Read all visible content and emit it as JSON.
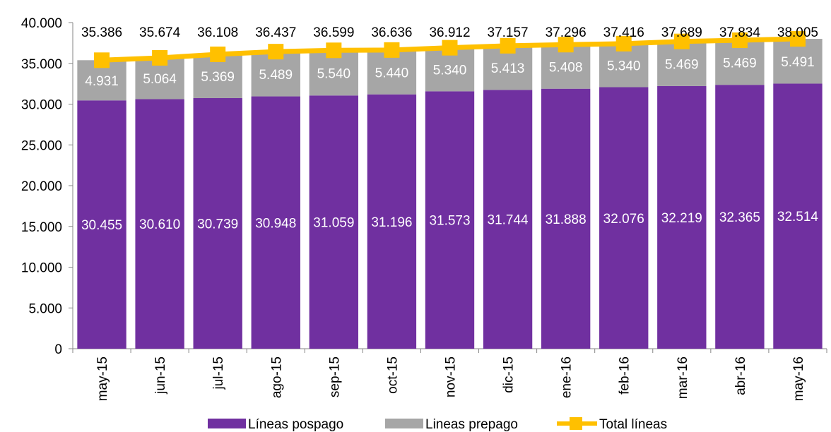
{
  "chart_data": {
    "type": "bar",
    "stacked": true,
    "categories": [
      "may-15",
      "jun-15",
      "jul-15",
      "ago-15",
      "sep-15",
      "oct-15",
      "nov-15",
      "dic-15",
      "ene-16",
      "feb-16",
      "mar-16",
      "abr-16",
      "may-16"
    ],
    "series": [
      {
        "name": "Líneas pospago",
        "kind": "bar",
        "color": "#7030a0",
        "values": [
          30455,
          30610,
          30739,
          30948,
          31059,
          31196,
          31573,
          31744,
          31888,
          32076,
          32219,
          32365,
          32514
        ],
        "labels": [
          "30.455",
          "30.610",
          "30.739",
          "30.948",
          "31.059",
          "31.196",
          "31.573",
          "31.744",
          "31.888",
          "32.076",
          "32.219",
          "32.365",
          "32.514"
        ]
      },
      {
        "name": "Lineas prepago",
        "kind": "bar",
        "color": "#a6a6a6",
        "values": [
          4931,
          5064,
          5369,
          5489,
          5540,
          5440,
          5340,
          5413,
          5408,
          5340,
          5469,
          5469,
          5491
        ],
        "labels": [
          "4.931",
          "5.064",
          "5.369",
          "5.489",
          "5.540",
          "5.440",
          "5.340",
          "5.413",
          "5.408",
          "5.340",
          "5.469",
          "5.469",
          "5.491"
        ]
      },
      {
        "name": "Total líneas",
        "kind": "line",
        "color": "#ffc000",
        "values": [
          35386,
          35674,
          36108,
          36437,
          36599,
          36636,
          36912,
          37157,
          37296,
          37416,
          37689,
          37834,
          38005
        ],
        "labels": [
          "35.386",
          "35.674",
          "36.108",
          "36.437",
          "36.599",
          "36.636",
          "36.912",
          "37.157",
          "37.296",
          "37.416",
          "37.689",
          "37.834",
          "38.005"
        ]
      }
    ],
    "y_ticks": [
      "0",
      "5.000",
      "10.000",
      "15.000",
      "20.000",
      "25.000",
      "30.000",
      "35.000",
      "40.000"
    ],
    "ylim": [
      0,
      40000
    ],
    "title": "",
    "xlabel": "",
    "ylabel": "",
    "grid": false,
    "legend_position": "bottom"
  }
}
